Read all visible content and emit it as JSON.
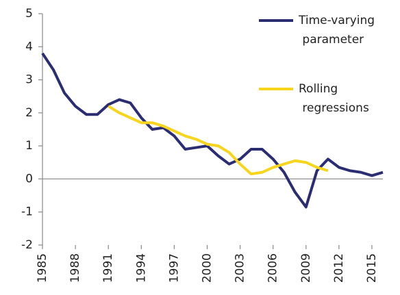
{
  "chart_data": {
    "type": "line",
    "x": [
      1985,
      1986,
      1987,
      1988,
      1989,
      1990,
      1991,
      1992,
      1993,
      1994,
      1995,
      1996,
      1997,
      1998,
      1999,
      2000,
      2001,
      2002,
      2003,
      2004,
      2005,
      2006,
      2007,
      2008,
      2009,
      2010,
      2011,
      2012,
      2013,
      2014,
      2015,
      2016
    ],
    "series": [
      {
        "name": "Time-varying parameter",
        "color": "#2b2d73",
        "values": [
          3.8,
          3.3,
          2.6,
          2.2,
          1.95,
          1.95,
          2.25,
          2.4,
          2.3,
          1.85,
          1.5,
          1.55,
          1.3,
          0.9,
          0.95,
          1.0,
          0.7,
          0.45,
          0.6,
          0.9,
          0.9,
          0.6,
          0.2,
          -0.4,
          -0.85,
          0.25,
          0.6,
          0.35,
          0.25,
          0.2,
          0.1,
          0.2
        ]
      },
      {
        "name": "Rolling regressions",
        "color": "#f7d51d",
        "values": [
          null,
          null,
          null,
          null,
          null,
          null,
          2.2,
          2.0,
          1.85,
          1.7,
          1.7,
          1.6,
          1.45,
          1.3,
          1.2,
          1.05,
          1.0,
          0.8,
          0.45,
          0.15,
          0.2,
          0.35,
          0.45,
          0.55,
          0.5,
          0.35,
          0.25,
          null,
          null,
          null,
          null,
          null
        ]
      }
    ],
    "xlim": [
      1985,
      2016
    ],
    "xticks": [
      1985,
      1988,
      1991,
      1994,
      1997,
      2000,
      2003,
      2006,
      2009,
      2012,
      2015
    ],
    "ylim": [
      -2,
      5
    ],
    "yticks": [
      -2,
      -1,
      0,
      1,
      2,
      3,
      4,
      5
    ],
    "grid": false,
    "legend": "top-right"
  }
}
